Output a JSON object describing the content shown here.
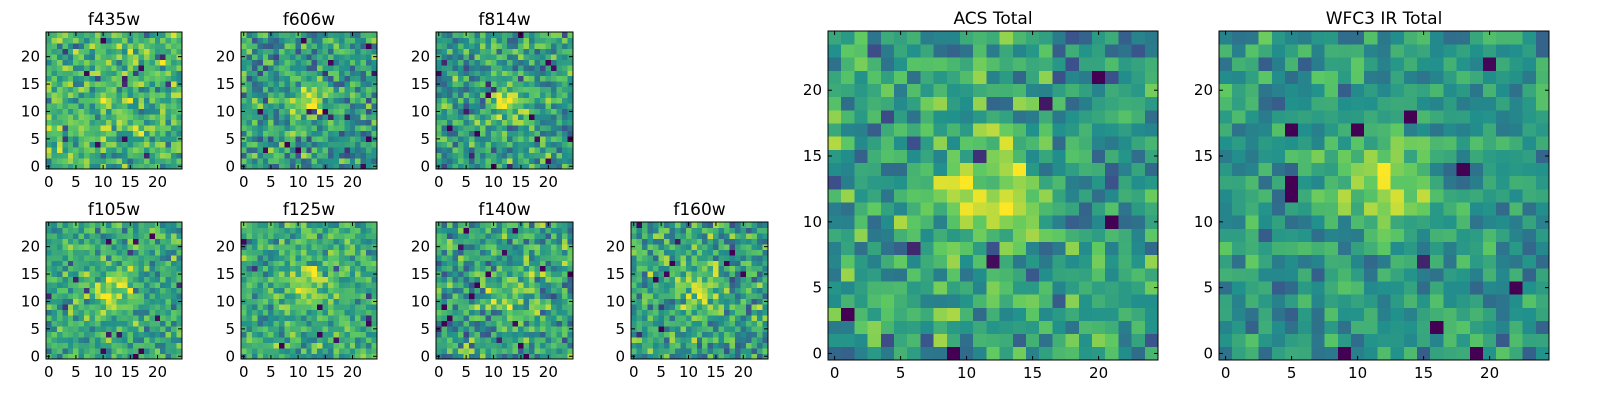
{
  "figure": {
    "background": "#ffffff",
    "colormap": "viridis",
    "colormap_stops": [
      "#440154",
      "#3b528b",
      "#21918c",
      "#5ec962",
      "#fde725"
    ]
  },
  "chart_data": [
    {
      "type": "heatmap",
      "title": "f435w",
      "grid_size": 25,
      "xlim": [
        -0.5,
        24.5
      ],
      "ylim": [
        -0.5,
        24.5
      ],
      "xticks": [
        0,
        5,
        10,
        15,
        20
      ],
      "yticks": [
        0,
        5,
        10,
        15,
        20
      ],
      "peak": [
        12,
        12
      ],
      "seed": 11,
      "signal": 0.04,
      "noise": 0.34,
      "base": 0.66
    },
    {
      "type": "heatmap",
      "title": "f606w",
      "grid_size": 25,
      "xlim": [
        -0.5,
        24.5
      ],
      "ylim": [
        -0.5,
        24.5
      ],
      "xticks": [
        0,
        5,
        10,
        15,
        20
      ],
      "yticks": [
        0,
        5,
        10,
        15,
        20
      ],
      "peak": [
        12,
        12
      ],
      "seed": 23,
      "signal": 0.3,
      "noise": 0.36,
      "base": 0.55
    },
    {
      "type": "heatmap",
      "title": "f814w",
      "grid_size": 25,
      "xlim": [
        -0.5,
        24.5
      ],
      "ylim": [
        -0.5,
        24.5
      ],
      "xticks": [
        0,
        5,
        10,
        15,
        20
      ],
      "yticks": [
        0,
        5,
        10,
        15,
        20
      ],
      "peak": [
        13,
        12
      ],
      "seed": 37,
      "signal": 0.3,
      "noise": 0.36,
      "base": 0.55
    },
    {
      "type": "heatmap",
      "title": "f105w",
      "grid_size": 25,
      "xlim": [
        -0.5,
        24.5
      ],
      "ylim": [
        -0.5,
        24.5
      ],
      "xticks": [
        0,
        5,
        10,
        15,
        20
      ],
      "yticks": [
        0,
        5,
        10,
        15,
        20
      ],
      "peak": [
        12,
        12
      ],
      "seed": 41,
      "signal": 0.3,
      "noise": 0.3,
      "base": 0.6
    },
    {
      "type": "heatmap",
      "title": "f125w",
      "grid_size": 25,
      "xlim": [
        -0.5,
        24.5
      ],
      "ylim": [
        -0.5,
        24.5
      ],
      "xticks": [
        0,
        5,
        10,
        15,
        20
      ],
      "yticks": [
        0,
        5,
        10,
        15,
        20
      ],
      "peak": [
        12,
        13
      ],
      "seed": 53,
      "signal": 0.25,
      "noise": 0.3,
      "base": 0.62
    },
    {
      "type": "heatmap",
      "title": "f140w",
      "grid_size": 25,
      "xlim": [
        -0.5,
        24.5
      ],
      "ylim": [
        -0.5,
        24.5
      ],
      "xticks": [
        0,
        5,
        10,
        15,
        20
      ],
      "yticks": [
        0,
        5,
        10,
        15,
        20
      ],
      "peak": [
        13,
        12
      ],
      "seed": 67,
      "signal": 0.25,
      "noise": 0.36,
      "base": 0.58
    },
    {
      "type": "heatmap",
      "title": "f160w",
      "grid_size": 25,
      "xlim": [
        -0.5,
        24.5
      ],
      "ylim": [
        -0.5,
        24.5
      ],
      "xticks": [
        0,
        5,
        10,
        15,
        20
      ],
      "yticks": [
        0,
        5,
        10,
        15,
        20
      ],
      "peak": [
        12,
        12
      ],
      "seed": 79,
      "signal": 0.25,
      "noise": 0.36,
      "base": 0.58
    },
    {
      "type": "heatmap",
      "title": "ACS Total",
      "grid_size": 25,
      "xlim": [
        -0.5,
        24.5
      ],
      "ylim": [
        -0.5,
        24.5
      ],
      "xticks": [
        0,
        5,
        10,
        15,
        20
      ],
      "yticks": [
        0,
        5,
        10,
        15,
        20
      ],
      "peak": [
        11.5,
        12
      ],
      "seed": 97,
      "signal": 0.4,
      "noise": 0.34,
      "base": 0.55
    },
    {
      "type": "heatmap",
      "title": "WFC3 IR Total",
      "grid_size": 25,
      "xlim": [
        -0.5,
        24.5
      ],
      "ylim": [
        -0.5,
        24.5
      ],
      "xticks": [
        0,
        5,
        10,
        15,
        20
      ],
      "yticks": [
        0,
        5,
        10,
        15,
        20
      ],
      "peak": [
        12,
        13
      ],
      "seed": 131,
      "signal": 0.38,
      "noise": 0.26,
      "base": 0.52
    }
  ]
}
